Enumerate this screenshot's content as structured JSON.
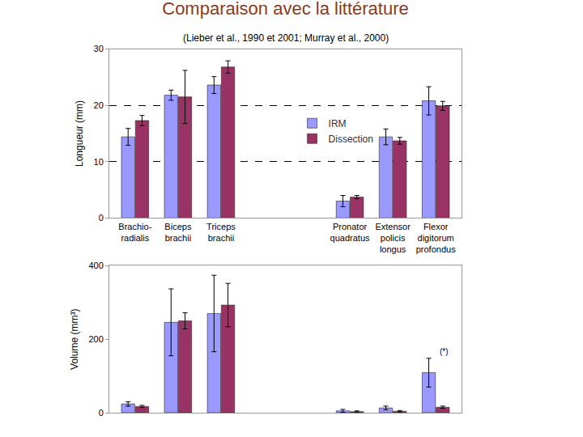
{
  "chart_data": [
    {
      "type": "bar",
      "title": "Comparaison avec la littérature",
      "subtitle": "(Lieber et al., 1990 et 2001; Murray et al., 2000)",
      "y_label": "Longueur (mm)",
      "categories": [
        "Brachio-\nradialis",
        "Biceps\nbrachii",
        "Triceps\nbrachii",
        null,
        null,
        "Pronator\nquadratus",
        "Extensor\npolicis\nlongus",
        "Flexor\ndigitorum\nprofondus"
      ],
      "series": [
        {
          "name": "IRM",
          "color": "#9999ff",
          "values": [
            14.4,
            21.8,
            23.6,
            null,
            null,
            3.0,
            14.4,
            20.8
          ],
          "errors": [
            1.5,
            0.9,
            1.5,
            null,
            null,
            1.0,
            1.4,
            2.5
          ]
        },
        {
          "name": "Dissection",
          "color": "#993366",
          "values": [
            17.3,
            21.5,
            26.8,
            null,
            null,
            3.7,
            13.7,
            19.9
          ],
          "errors": [
            0.9,
            4.7,
            1.1,
            null,
            null,
            0.3,
            0.6,
            0.8
          ]
        }
      ],
      "ylim": [
        0,
        30
      ],
      "yticks": [
        0,
        10,
        20,
        30
      ],
      "grid": true,
      "legend": "center"
    },
    {
      "type": "bar",
      "y_label": "Volume (mm³)",
      "categories": [
        "Brachio-\nradialis",
        "Biceps\nbrachii",
        "Triceps\nbrachii",
        null,
        null,
        "Pronator\nquadratus",
        "Extensor\npolicis\nlongus",
        "Flexor\ndigitorum\nprofondus"
      ],
      "series": [
        {
          "name": "IRM",
          "color": "#9999ff",
          "values": [
            24,
            246,
            270,
            null,
            null,
            5,
            13,
            109
          ],
          "errors": [
            6,
            91,
            104,
            null,
            null,
            4,
            5,
            39
          ]
        },
        {
          "name": "Dissection",
          "color": "#993366",
          "values": [
            17,
            250,
            293,
            null,
            null,
            3,
            4,
            15
          ],
          "errors": [
            3,
            22,
            59,
            null,
            null,
            2,
            2,
            3
          ]
        }
      ],
      "ylim": [
        0,
        400
      ],
      "yticks": [
        0,
        200,
        400
      ],
      "grid": false,
      "tick_labels": "y",
      "annotations": [
        {
          "text": "(*)",
          "category": "Flexor\ndigitorum\nprofondus",
          "y": 150
        }
      ]
    }
  ]
}
